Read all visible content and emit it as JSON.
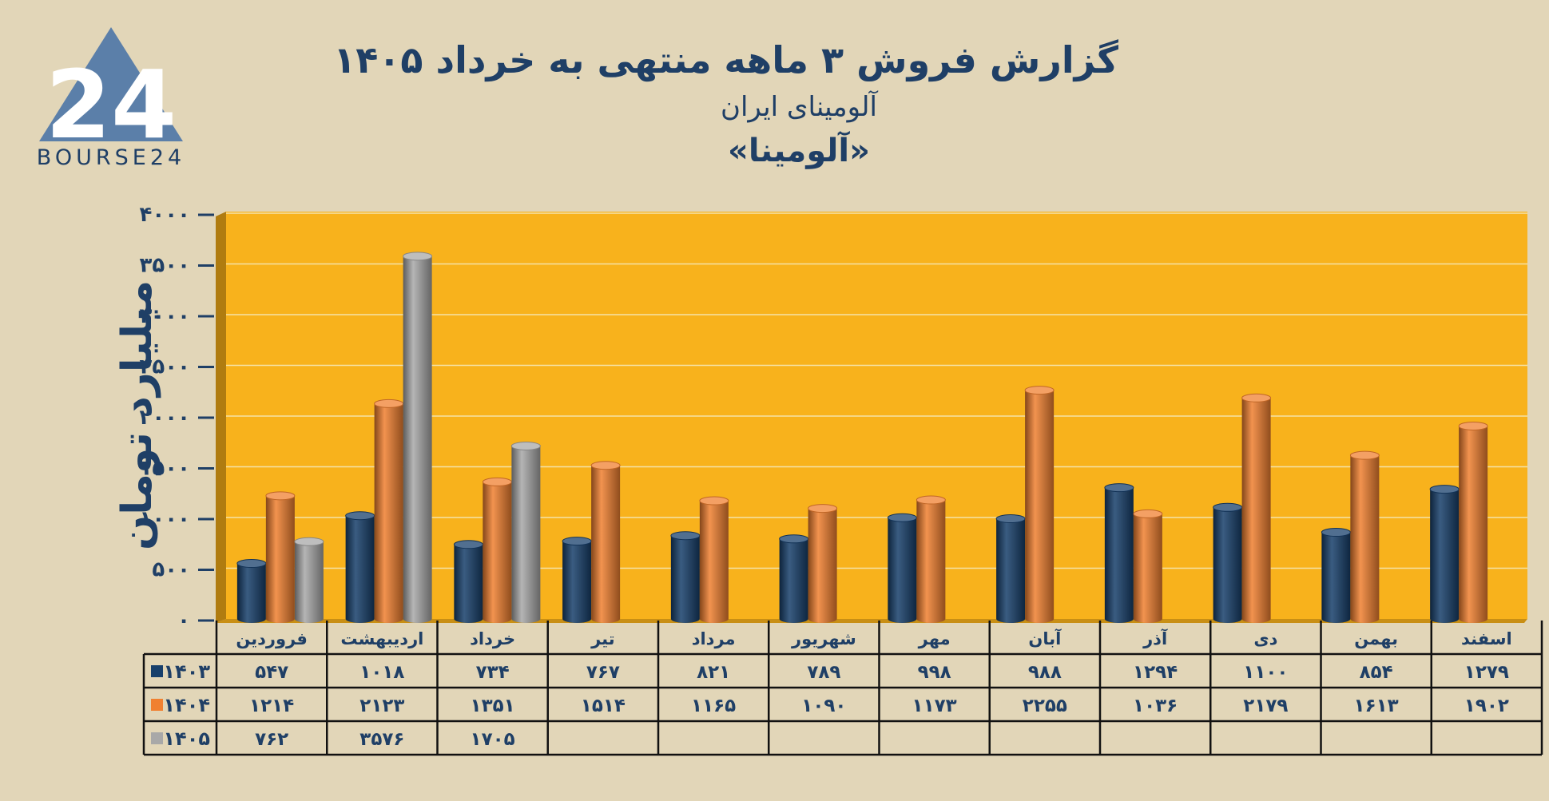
{
  "header": {
    "title": "گزارش  فروش ۳ ماهه منتهی به خرداد ۱۴۰۵",
    "subtitle": "آلومینای ایران",
    "ticker": "«آلومینا»"
  },
  "logo": {
    "icon": "bourse24-triangle-logo",
    "brand": "BOURSE24",
    "mark": "24"
  },
  "colors": {
    "background": "#e2d6b8",
    "plot": "#f8b21c",
    "text": "#1f3f66",
    "s1403": "#173f6b",
    "s1404": "#f08030",
    "s1405": "#a8a8a8"
  },
  "chart_data": {
    "type": "bar",
    "ylabel": "میلیارد تومان",
    "ylim": [
      0,
      4000
    ],
    "yticks": [
      0,
      500,
      1000,
      1500,
      2000,
      2500,
      3000,
      3500,
      4000
    ],
    "ytick_labels": [
      "۰",
      "۵۰۰",
      "۱۰۰۰",
      "۱۵۰۰",
      "۲۰۰۰",
      "۲۵۰۰",
      "۳۰۰۰",
      "۳۵۰۰",
      "۴۰۰۰"
    ],
    "grid": true,
    "categories": [
      "فروردین",
      "اردیبهشت",
      "خرداد",
      "تیر",
      "مرداد",
      "شهریور",
      "مهر",
      "آبان",
      "آذر",
      "دی",
      "بهمن",
      "اسفند"
    ],
    "series": [
      {
        "name": "۱۴۰۳",
        "values": [
          547,
          1018,
          734,
          767,
          821,
          789,
          998,
          988,
          1294,
          1100,
          854,
          1279
        ],
        "labels": [
          "۵۴۷",
          "۱۰۱۸",
          "۷۳۴",
          "۷۶۷",
          "۸۲۱",
          "۷۸۹",
          "۹۹۸",
          "۹۸۸",
          "۱۲۹۴",
          "۱۱۰۰",
          "۸۵۴",
          "۱۲۷۹"
        ]
      },
      {
        "name": "۱۴۰۴",
        "values": [
          1214,
          2123,
          1351,
          1514,
          1165,
          1090,
          1173,
          2255,
          1036,
          2179,
          1613,
          1902
        ],
        "labels": [
          "۱۲۱۴",
          "۲۱۲۳",
          "۱۳۵۱",
          "۱۵۱۴",
          "۱۱۶۵",
          "۱۰۹۰",
          "۱۱۷۳",
          "۲۲۵۵",
          "۱۰۳۶",
          "۲۱۷۹",
          "۱۶۱۳",
          "۱۹۰۲"
        ]
      },
      {
        "name": "۱۴۰۵",
        "values": [
          762,
          3576,
          1705,
          null,
          null,
          null,
          null,
          null,
          null,
          null,
          null,
          null
        ],
        "labels": [
          "۷۶۲",
          "۳۵۷۶",
          "۱۷۰۵",
          "",
          "",
          "",
          "",
          "",
          "",
          "",
          "",
          ""
        ]
      }
    ]
  }
}
